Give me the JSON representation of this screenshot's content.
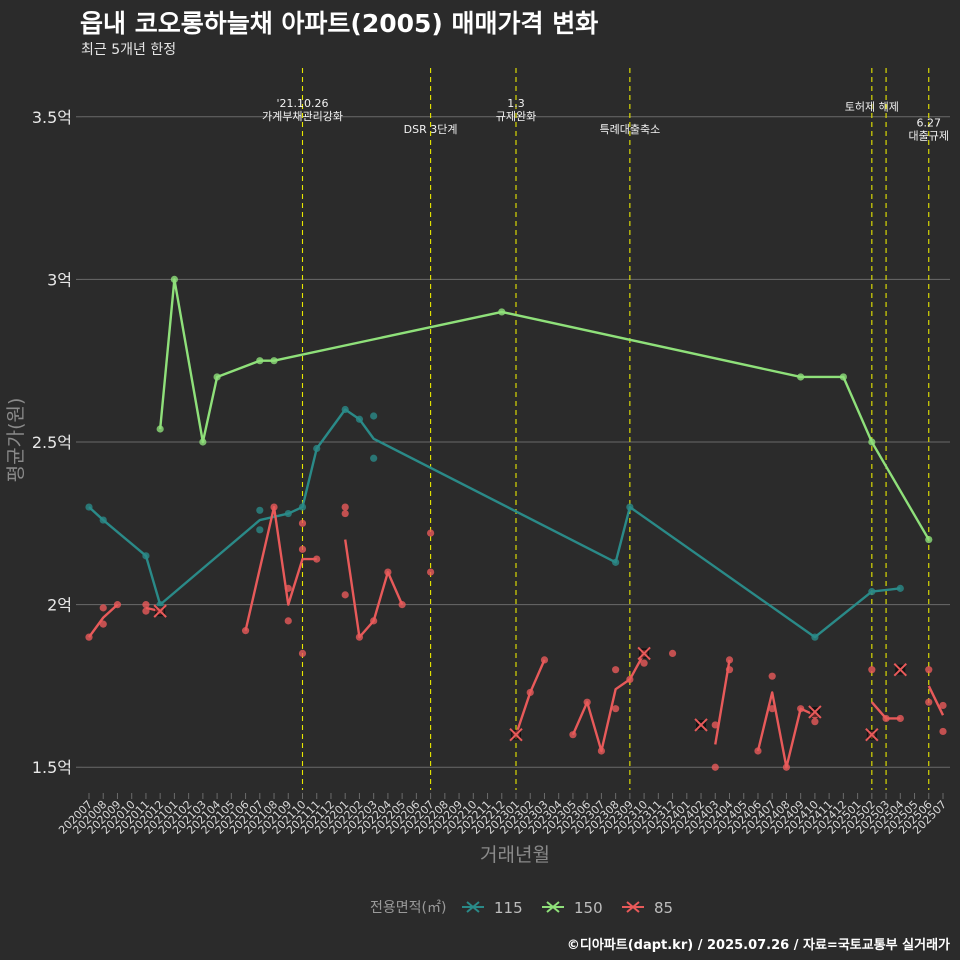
{
  "title": "읍내 코오롱하늘채 아파트(2005) 매매가격 변화",
  "subtitle": "최근 5개년 한정",
  "caption": "©디아파트(dapt.kr) / 2025.07.26 / 자료=국토교통부 실거래가",
  "colors": {
    "background": "#2b2b2b",
    "grid": "#6a6a6a",
    "event_line": "#e8e800",
    "s115": "#2a8a88",
    "s150": "#8fe07a",
    "s85": "#e85a5a"
  },
  "chart_data": {
    "type": "line",
    "xlabel": "거래년월",
    "ylabel": "평균가(원)",
    "ylim": [
      1.43,
      3.65
    ],
    "categories": [
      "202007",
      "202008",
      "202009",
      "202010",
      "202011",
      "202012",
      "202101",
      "202102",
      "202103",
      "202104",
      "202105",
      "202106",
      "202107",
      "202108",
      "202109",
      "202110",
      "202111",
      "202112",
      "202201",
      "202202",
      "202203",
      "202204",
      "202205",
      "202206",
      "202207",
      "202208",
      "202209",
      "202210",
      "202211",
      "202212",
      "202301",
      "202302",
      "202303",
      "202304",
      "202305",
      "202306",
      "202307",
      "202308",
      "202309",
      "202310",
      "202311",
      "202312",
      "202401",
      "202402",
      "202403",
      "202404",
      "202405",
      "202406",
      "202407",
      "202408",
      "202409",
      "202410",
      "202411",
      "202412",
      "202501",
      "202502",
      "202503",
      "202504",
      "202505",
      "202506",
      "202507"
    ],
    "y_ticks": [
      {
        "value": 1.5,
        "label": "1.5억"
      },
      {
        "value": 2.0,
        "label": "2억"
      },
      {
        "value": 2.5,
        "label": "2.5억"
      },
      {
        "value": 3.0,
        "label": "3억"
      },
      {
        "value": 3.5,
        "label": "3.5억"
      }
    ],
    "legend": {
      "title": "전용면적(㎡)",
      "position": "bottom",
      "entries": [
        "115",
        "150",
        "85"
      ]
    },
    "events": [
      {
        "x": "202110",
        "lines": [
          "'21.10.26",
          "가계부채관리강화"
        ],
        "label_y": [
          3.53,
          3.49
        ]
      },
      {
        "x": "202207",
        "lines": [
          "DSR 3단계"
        ],
        "label_y": [
          3.45
        ]
      },
      {
        "x": "202301",
        "lines": [
          "1.3",
          "규제완화"
        ],
        "label_y": [
          3.53,
          3.49
        ]
      },
      {
        "x": "202309",
        "lines": [
          "특례대출축소"
        ],
        "label_y": [
          3.45
        ]
      },
      {
        "x": "202502",
        "lines": [
          "토허제 해제"
        ],
        "label_y": [
          3.52
        ]
      },
      {
        "x": "202503",
        "lines": [],
        "label_y": []
      },
      {
        "x": "202506",
        "lines": [
          "6.27",
          "대출규제"
        ],
        "label_y": [
          3.47,
          3.43
        ]
      }
    ],
    "series": [
      {
        "name": "115",
        "line": [
          [
            "202007",
            2.3
          ],
          [
            "202008",
            2.26
          ],
          [
            "202011",
            2.15
          ],
          [
            "202012",
            2.0
          ],
          [
            "202107",
            2.26
          ],
          [
            "202109",
            2.28
          ],
          [
            "202110",
            2.3
          ],
          [
            "202111",
            2.48
          ],
          [
            "202201",
            2.6
          ],
          [
            "202202",
            2.57
          ],
          [
            "202203",
            2.51
          ],
          [
            "202308",
            2.13
          ],
          [
            "202309",
            2.3
          ],
          [
            "202410",
            1.9
          ],
          [
            "202502",
            2.04
          ],
          [
            "202504",
            2.05
          ]
        ],
        "points": [
          [
            "202007",
            2.3
          ],
          [
            "202008",
            2.26
          ],
          [
            "202011",
            2.15
          ],
          [
            "202012",
            2.0
          ],
          [
            "202107",
            2.29
          ],
          [
            "202107",
            2.23
          ],
          [
            "202109",
            2.28
          ],
          [
            "202110",
            2.3
          ],
          [
            "202111",
            2.48
          ],
          [
            "202201",
            2.6
          ],
          [
            "202202",
            2.57
          ],
          [
            "202203",
            2.58
          ],
          [
            "202203",
            2.45
          ],
          [
            "202308",
            2.13
          ],
          [
            "202309",
            2.3
          ],
          [
            "202410",
            1.9
          ],
          [
            "202502",
            2.04
          ],
          [
            "202504",
            2.05
          ]
        ]
      },
      {
        "name": "150",
        "line": [
          [
            "202012",
            2.54
          ],
          [
            "202101",
            3.0
          ],
          [
            "202103",
            2.5
          ],
          [
            "202104",
            2.7
          ],
          [
            "202107",
            2.75
          ],
          [
            "202108",
            2.75
          ],
          [
            "202212",
            2.9
          ],
          [
            "202409",
            2.7
          ],
          [
            "202412",
            2.7
          ],
          [
            "202502",
            2.5
          ],
          [
            "202506",
            2.2
          ]
        ],
        "points": [
          [
            "202012",
            2.54
          ],
          [
            "202101",
            3.0
          ],
          [
            "202103",
            2.5
          ],
          [
            "202104",
            2.7
          ],
          [
            "202107",
            2.75
          ],
          [
            "202108",
            2.75
          ],
          [
            "202212",
            2.9
          ],
          [
            "202409",
            2.7
          ],
          [
            "202412",
            2.7
          ],
          [
            "202502",
            2.5
          ],
          [
            "202506",
            2.2
          ]
        ]
      },
      {
        "name": "85",
        "line_segments": [
          [
            [
              "202007",
              1.9
            ],
            [
              "202008",
              1.96
            ],
            [
              "202009",
              2.0
            ]
          ],
          [
            [
              "202011",
              1.99
            ],
            [
              "202012",
              1.98
            ]
          ],
          [
            [
              "202106",
              1.92
            ],
            [
              "202108",
              2.3
            ],
            [
              "202109",
              2.0
            ],
            [
              "202110",
              2.14
            ],
            [
              "202111",
              2.14
            ]
          ],
          [
            [
              "202201",
              2.2
            ],
            [
              "202202",
              1.9
            ],
            [
              "202203",
              1.95
            ],
            [
              "202204",
              2.1
            ],
            [
              "202205",
              2.0
            ]
          ],
          [
            [
              "202301",
              1.6
            ],
            [
              "202302",
              1.73
            ],
            [
              "202303",
              1.83
            ]
          ],
          [
            [
              "202305",
              1.6
            ],
            [
              "202306",
              1.7
            ],
            [
              "202307",
              1.55
            ],
            [
              "202308",
              1.74
            ],
            [
              "202309",
              1.77
            ],
            [
              "202310",
              1.85
            ]
          ],
          [
            [
              "202403",
              1.57
            ],
            [
              "202404",
              1.83
            ]
          ],
          [
            [
              "202406",
              1.55
            ],
            [
              "202407",
              1.73
            ],
            [
              "202408",
              1.5
            ],
            [
              "202409",
              1.68
            ],
            [
              "202410",
              1.66
            ]
          ],
          [
            [
              "202502",
              1.7
            ],
            [
              "202503",
              1.65
            ],
            [
              "202504",
              1.65
            ]
          ],
          [
            [
              "202506",
              1.75
            ],
            [
              "202507",
              1.66
            ]
          ]
        ],
        "points": [
          [
            "202007",
            1.9
          ],
          [
            "202008",
            1.94
          ],
          [
            "202008",
            1.99
          ],
          [
            "202009",
            2.0
          ],
          [
            "202011",
            2.0
          ],
          [
            "202011",
            1.98
          ],
          [
            "202012",
            1.98
          ],
          [
            "202106",
            1.92
          ],
          [
            "202108",
            2.3
          ],
          [
            "202109",
            1.95
          ],
          [
            "202109",
            2.05
          ],
          [
            "202110",
            2.25
          ],
          [
            "202110",
            2.17
          ],
          [
            "202110",
            1.85
          ],
          [
            "202111",
            2.14
          ],
          [
            "202201",
            2.3
          ],
          [
            "202201",
            2.28
          ],
          [
            "202201",
            2.03
          ],
          [
            "202202",
            1.9
          ],
          [
            "202203",
            1.95
          ],
          [
            "202204",
            2.1
          ],
          [
            "202205",
            2.0
          ],
          [
            "202207",
            2.22
          ],
          [
            "202207",
            2.1
          ],
          [
            "202301",
            1.6
          ],
          [
            "202302",
            1.73
          ],
          [
            "202303",
            1.83
          ],
          [
            "202305",
            1.6
          ],
          [
            "202306",
            1.7
          ],
          [
            "202307",
            1.55
          ],
          [
            "202308",
            1.8
          ],
          [
            "202308",
            1.68
          ],
          [
            "202309",
            1.77
          ],
          [
            "202310",
            1.85
          ],
          [
            "202310",
            1.82
          ],
          [
            "202312",
            1.85
          ],
          [
            "202403",
            1.63
          ],
          [
            "202403",
            1.5
          ],
          [
            "202404",
            1.8
          ],
          [
            "202404",
            1.83
          ],
          [
            "202406",
            1.55
          ],
          [
            "202407",
            1.78
          ],
          [
            "202407",
            1.68
          ],
          [
            "202408",
            1.5
          ],
          [
            "202409",
            1.68
          ],
          [
            "202410",
            1.66
          ],
          [
            "202410",
            1.64
          ],
          [
            "202502",
            1.8
          ],
          [
            "202502",
            1.6
          ],
          [
            "202503",
            1.65
          ],
          [
            "202504",
            1.65
          ],
          [
            "202506",
            1.8
          ],
          [
            "202506",
            1.7
          ],
          [
            "202507",
            1.69
          ],
          [
            "202507",
            1.61
          ]
        ],
        "cross_markers": [
          [
            "202012",
            1.98
          ],
          [
            "202301",
            1.6
          ],
          [
            "202310",
            1.85
          ],
          [
            "202402",
            1.63
          ],
          [
            "202410",
            1.67
          ],
          [
            "202502",
            1.6
          ],
          [
            "202504",
            1.8
          ]
        ]
      }
    ]
  }
}
